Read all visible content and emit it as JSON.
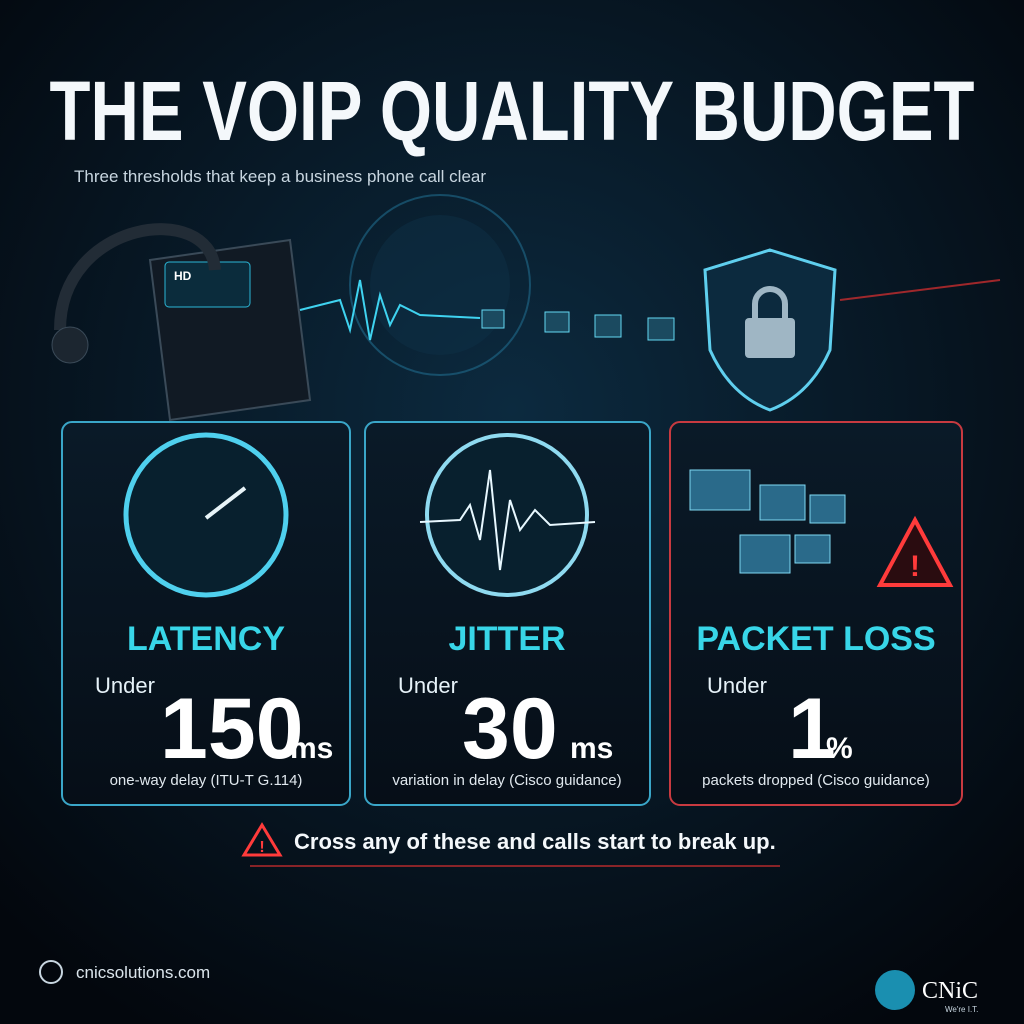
{
  "header": {
    "title": "THE VOIP QUALITY BUDGET",
    "subtitle": "Three thresholds that keep a business phone call clear"
  },
  "phone_screen": "HD",
  "cards": [
    {
      "title": "LATENCY",
      "prefix": "Under",
      "value": 150,
      "unit": "ms",
      "caption": "one-way delay (ITU-T G.114)"
    },
    {
      "title": "JITTER",
      "prefix": "Under",
      "value": 30,
      "unit": "ms",
      "caption": "variation in delay (Cisco guidance)"
    },
    {
      "title": "PACKET LOSS",
      "prefix": "Under",
      "value": 1,
      "unit": "%",
      "caption": "packets dropped (Cisco guidance)"
    }
  ],
  "warning": "Cross any of these and calls start to break up.",
  "footer": {
    "website": "cnicsolutions.com",
    "logo": "CNiC",
    "tagline": "We're I.T."
  }
}
